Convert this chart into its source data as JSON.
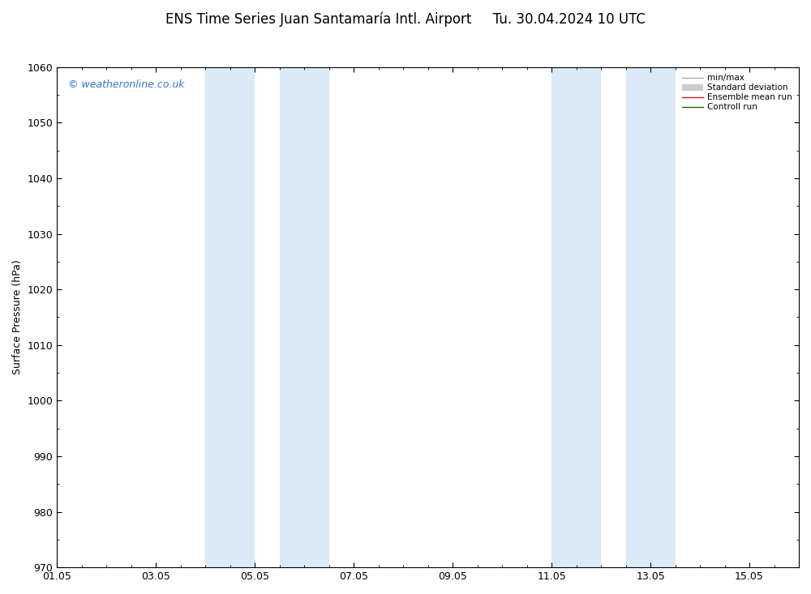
{
  "title_left": "ENS Time Series Juan Santamaría Intl. Airport",
  "title_right": "Tu. 30.04.2024 10 UTC",
  "ylabel": "Surface Pressure (hPa)",
  "watermark": "© weatheronline.co.uk",
  "watermark_color": "#3377cc",
  "ylim": [
    970,
    1060
  ],
  "yticks": [
    970,
    980,
    990,
    1000,
    1010,
    1020,
    1030,
    1040,
    1050,
    1060
  ],
  "xlim_start": 0,
  "xlim_end": 15,
  "xtick_labels": [
    "01.05",
    "03.05",
    "05.05",
    "07.05",
    "09.05",
    "11.05",
    "13.05",
    "15.05"
  ],
  "xtick_positions": [
    0,
    2,
    4,
    6,
    8,
    10,
    12,
    14
  ],
  "shaded_bands": [
    {
      "xmin": 3.0,
      "xmax": 4.0
    },
    {
      "xmin": 4.5,
      "xmax": 5.5
    },
    {
      "xmin": 10.0,
      "xmax": 11.0
    },
    {
      "xmin": 11.5,
      "xmax": 12.5
    }
  ],
  "band_color": "#daeaf7",
  "background_color": "#ffffff",
  "legend_items": [
    {
      "label": "min/max",
      "color": "#aaaaaa",
      "lw": 1.0
    },
    {
      "label": "Standard deviation",
      "color": "#cccccc",
      "lw": 6.0
    },
    {
      "label": "Ensemble mean run",
      "color": "#cc2222",
      "lw": 1.0
    },
    {
      "label": "Controll run",
      "color": "#226622",
      "lw": 1.0
    }
  ],
  "title_fontsize": 12,
  "ylabel_fontsize": 9,
  "tick_fontsize": 9,
  "watermark_fontsize": 9,
  "legend_fontsize": 7.5
}
